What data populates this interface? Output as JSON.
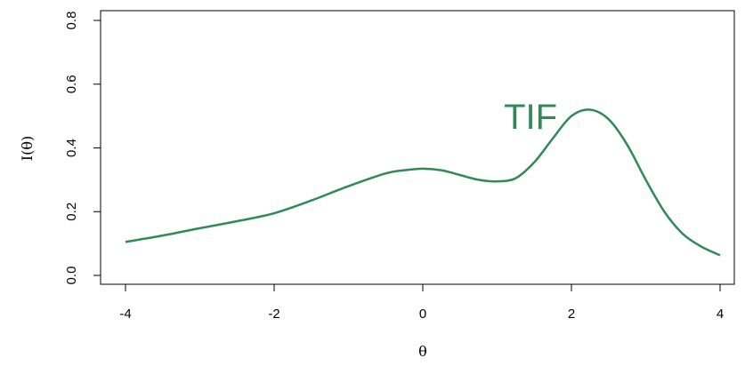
{
  "chart_data": {
    "type": "line",
    "title": "",
    "xlabel": "θ",
    "ylabel": "I(θ)",
    "xlim": [
      -4,
      4
    ],
    "ylim": [
      0,
      0.8
    ],
    "x_ticks": [
      "-4",
      "-2",
      "0",
      "2",
      "4"
    ],
    "y_ticks": [
      "0.0",
      "0.2",
      "0.4",
      "0.6",
      "0.8"
    ],
    "grid": false,
    "legend": "none",
    "annotations": [
      {
        "text": "TIF",
        "x": 1.45,
        "y": 0.49
      }
    ],
    "series": [
      {
        "color": "#2e8b57",
        "x": [
          -4,
          -3.5,
          -3,
          -2.5,
          -2,
          -1.5,
          -1,
          -0.5,
          -0.25,
          0,
          0.25,
          0.5,
          0.75,
          1,
          1.25,
          1.5,
          1.75,
          2,
          2.25,
          2.5,
          2.75,
          3,
          3.25,
          3.5,
          3.75,
          4
        ],
        "y": [
          0.105,
          0.125,
          0.148,
          0.17,
          0.195,
          0.235,
          0.28,
          0.32,
          0.33,
          0.335,
          0.33,
          0.315,
          0.3,
          0.295,
          0.305,
          0.355,
          0.43,
          0.5,
          0.52,
          0.49,
          0.41,
          0.3,
          0.2,
          0.13,
          0.09,
          0.063
        ]
      }
    ]
  }
}
